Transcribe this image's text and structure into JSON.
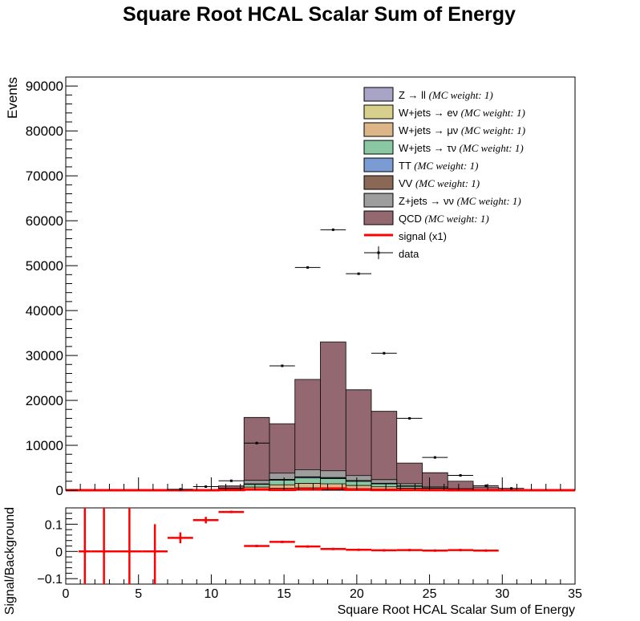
{
  "chart_data": [
    {
      "type": "bar",
      "title": "Square Root HCAL Scalar Sum of Energy",
      "ylabel": "Events",
      "xlim": [
        0,
        35
      ],
      "ylim": [
        0,
        92000
      ],
      "yticks": [
        0,
        10000,
        20000,
        30000,
        40000,
        50000,
        60000,
        70000,
        80000,
        90000
      ],
      "ytick_labels": [
        "0",
        "10000",
        "20000",
        "30000",
        "40000",
        "50000",
        "60000",
        "70000",
        "80000",
        "90000"
      ],
      "legend_position": "top-right",
      "legend_weight_text": "(MC weight: 1)",
      "bin_edges": [
        0,
        1.75,
        3.5,
        5.25,
        7,
        8.75,
        10.5,
        12.25,
        14,
        15.75,
        17.5,
        19.25,
        21,
        22.75,
        24.5,
        26.25,
        28,
        29.75,
        31.5,
        33.25,
        35
      ],
      "series": [
        {
          "name": "Z → ll",
          "color": "#a7a4c7",
          "values": [
            0,
            0,
            0,
            0,
            0,
            0,
            20,
            60,
            90,
            110,
            100,
            80,
            60,
            40,
            20,
            10,
            5,
            2,
            0,
            0
          ]
        },
        {
          "name": "W+jets → eν",
          "color": "#d7d08c",
          "values": [
            0,
            0,
            0,
            0,
            0,
            5,
            30,
            180,
            320,
            420,
            380,
            280,
            200,
            120,
            60,
            30,
            15,
            5,
            0,
            0
          ]
        },
        {
          "name": "W+jets → μν",
          "color": "#dcb688",
          "values": [
            0,
            0,
            0,
            0,
            0,
            10,
            80,
            450,
            800,
            1000,
            950,
            700,
            500,
            300,
            150,
            70,
            30,
            10,
            0,
            0
          ]
        },
        {
          "name": "W+jets → τν",
          "color": "#89c8a3",
          "values": [
            0,
            0,
            0,
            0,
            0,
            10,
            100,
            600,
            1000,
            1200,
            1150,
            900,
            650,
            400,
            200,
            100,
            40,
            15,
            0,
            0
          ]
        },
        {
          "name": "TT",
          "color": "#7b9bd3",
          "values": [
            0,
            0,
            0,
            0,
            0,
            0,
            20,
            80,
            150,
            200,
            200,
            160,
            120,
            70,
            40,
            20,
            10,
            5,
            0,
            0
          ]
        },
        {
          "name": "VV",
          "color": "#8b6855",
          "values": [
            0,
            0,
            0,
            0,
            0,
            0,
            10,
            30,
            40,
            50,
            50,
            40,
            30,
            20,
            10,
            5,
            2,
            0,
            0,
            0
          ]
        },
        {
          "name": "Z+jets → νν",
          "color": "#9d9d9d",
          "values": [
            0,
            0,
            0,
            0,
            0,
            20,
            160,
            800,
            1400,
            1600,
            1500,
            1100,
            800,
            500,
            250,
            120,
            50,
            20,
            0,
            0
          ]
        },
        {
          "name": "QCD",
          "color": "#946870",
          "values": [
            0,
            0,
            0,
            0,
            0,
            30,
            530,
            14000,
            11000,
            20100,
            28700,
            19100,
            15200,
            4600,
            3170,
            1650,
            560,
            143,
            0,
            0
          ]
        },
        {
          "name": "signal (x1)",
          "color": "#ff0000",
          "values": [
            0,
            0,
            0,
            0,
            0,
            1,
            40,
            160,
            70,
            220,
            370,
            120,
            50,
            40,
            20,
            10,
            5,
            1,
            0,
            0
          ]
        }
      ],
      "data": {
        "name": "data",
        "x": [
          7.875,
          9.625,
          11.375,
          13.125,
          14.875,
          16.625,
          18.375,
          20.125,
          21.875,
          23.625,
          25.375,
          27.125,
          28.875,
          30.625
        ],
        "y": [
          200,
          800,
          2100,
          10500,
          27700,
          49600,
          58000,
          48200,
          30500,
          16000,
          7300,
          3300,
          1000,
          400
        ]
      }
    },
    {
      "type": "scatter",
      "xlabel": "Square Root HCAL Scalar Sum of Energy",
      "ylabel": "Signal/Background",
      "xlim": [
        0,
        35
      ],
      "ylim": [
        -0.12,
        0.16
      ],
      "xticks": [
        0,
        5,
        10,
        15,
        20,
        25,
        30,
        35
      ],
      "xtick_labels": [
        "0",
        "5",
        "10",
        "15",
        "20",
        "25",
        "30",
        "35"
      ],
      "yticks": [
        -0.1,
        0,
        0.1
      ],
      "ytick_labels": [
        "−0.1",
        "0",
        "0.1"
      ],
      "points": [
        {
          "x0": 0.875,
          "x1": 1.75,
          "y": 0,
          "err": 1
        },
        {
          "x0": 1.75,
          "x1": 3.5,
          "y": 0,
          "err": 1
        },
        {
          "x0": 3.5,
          "x1": 5.25,
          "y": 0,
          "err": 1
        },
        {
          "x0": 5.25,
          "x1": 7,
          "y": 0,
          "err": 0
        },
        {
          "x0": 7,
          "x1": 8.75,
          "y": 0.05,
          "err": 0.02
        },
        {
          "x0": 8.75,
          "x1": 10.5,
          "y": 0.115,
          "err": 0.012
        },
        {
          "x0": 10.5,
          "x1": 12.25,
          "y": 0.145,
          "err": 0.004
        },
        {
          "x0": 12.25,
          "x1": 14,
          "y": 0.02,
          "err": 0.002
        },
        {
          "x0": 14,
          "x1": 15.75,
          "y": 0.035,
          "err": 0.002
        },
        {
          "x0": 15.75,
          "x1": 17.5,
          "y": 0.018,
          "err": 0.001
        },
        {
          "x0": 17.5,
          "x1": 19.25,
          "y": 0.009,
          "err": 0.001
        },
        {
          "x0": 19.25,
          "x1": 21,
          "y": 0.006,
          "err": 0.001
        },
        {
          "x0": 21,
          "x1": 22.75,
          "y": 0.004,
          "err": 0.001
        },
        {
          "x0": 22.75,
          "x1": 24.5,
          "y": 0.005,
          "err": 0.001
        },
        {
          "x0": 24.5,
          "x1": 26.25,
          "y": 0.003,
          "err": 0.001
        },
        {
          "x0": 26.25,
          "x1": 28,
          "y": 0.005,
          "err": 0.001
        },
        {
          "x0": 28,
          "x1": 29.75,
          "y": 0.003,
          "err": 0.001
        }
      ],
      "color": "#ff0000"
    }
  ]
}
